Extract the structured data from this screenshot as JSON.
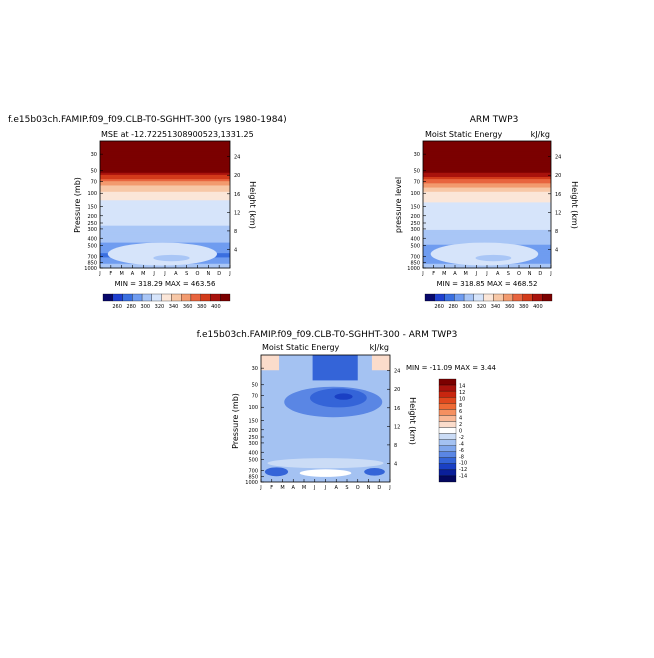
{
  "left_panel": {
    "title": "f.e15b03ch.FAMIP.f09_f09.CLB-T0-SGHHT-300 (yrs 1980-1984)",
    "subtitle": "MSE at -12.72251308900523,1331.25",
    "ylabel_left": "Pressure (mb)",
    "ylabel_right": "Height (km)",
    "minmax": "MIN = 318.29  MAX = 463.56",
    "colorbar_labels": [
      "260",
      "280",
      "300",
      "320",
      "340",
      "360",
      "380",
      "400"
    ]
  },
  "right_panel": {
    "title": "ARM TWP3",
    "subtitle_left": "Moist Static Energy",
    "subtitle_right": "kJ/kg",
    "ylabel_left": "pressure level",
    "ylabel_right": "Height (km)",
    "minmax": "MIN = 318.85  MAX = 468.52",
    "colorbar_labels": [
      "260",
      "280",
      "300",
      "320",
      "340",
      "360",
      "380",
      "400"
    ]
  },
  "bottom_panel": {
    "title": "f.e15b03ch.FAMIP.f09_f09.CLB-T0-SGHHT-300 - ARM TWP3",
    "subtitle_left": "Moist Static Energy",
    "subtitle_right": "kJ/kg",
    "ylabel_left": "Pressure (mb)",
    "ylabel_right": "Height (km)",
    "minmax": "MIN = -11.09  MAX =   3.44",
    "colorbar_labels": [
      "14",
      "12",
      "10",
      "8",
      "6",
      "4",
      "2",
      "0",
      "-2",
      "-4",
      "-6",
      "-8",
      "-10",
      "-12",
      "-14"
    ]
  },
  "axes": {
    "months": [
      "J",
      "F",
      "M",
      "A",
      "M",
      "J",
      "J",
      "A",
      "S",
      "O",
      "N",
      "D",
      "J"
    ],
    "pressure_ticks": [
      "30",
      "50",
      "70",
      "100",
      "150",
      "200",
      "250",
      "300",
      "400",
      "500",
      "700",
      "850",
      "1000"
    ],
    "height_ticks_top": [
      "4",
      "8",
      "12",
      "16",
      "20",
      "24"
    ],
    "height_ticks_bottom": [
      "4",
      "8",
      "12",
      "16",
      "20",
      "24"
    ]
  },
  "colors": {
    "mse_scale": [
      "#08086b",
      "#1e3fcf",
      "#3a6fe0",
      "#6f9cf0",
      "#a9c6f6",
      "#d6e4fa",
      "#fbe6d8",
      "#f7c7a6",
      "#f29a6e",
      "#e8643e",
      "#d23a1a",
      "#a8120c",
      "#7b0000"
    ],
    "diff_scale": [
      "#7b0000",
      "#a8120c",
      "#c8260f",
      "#e0481e",
      "#ee6a35",
      "#f59060",
      "#f9b896",
      "#fbdccb",
      "#ffffff",
      "#cbdcf6",
      "#a4c2f2",
      "#7fa6ec",
      "#5a86e4",
      "#3464d8",
      "#1a40c4",
      "#0a1f9a",
      "#04085f"
    ]
  },
  "chart_data": [
    {
      "type": "heatmap",
      "title": "f.e15b03ch.FAMIP.f09_f09.CLB-T0-SGHHT-300 (yrs 1980-1984)",
      "subtitle": "MSE at -12.72251308900523,1331.25",
      "x_label": "",
      "y_label": "Pressure (mb)",
      "y2_label": "Height (km)",
      "x_categories": [
        "J",
        "F",
        "M",
        "A",
        "M",
        "J",
        "J",
        "A",
        "S",
        "O",
        "N",
        "D",
        "J"
      ],
      "y_ticks": [
        "30",
        "50",
        "70",
        "100",
        "150",
        "200",
        "250",
        "300",
        "400",
        "500",
        "700",
        "850",
        "1000"
      ],
      "min": 318.29,
      "max": 463.56,
      "colorbar": [
        260,
        280,
        300,
        320,
        340,
        360,
        380,
        400
      ],
      "profile_by_level": [
        {
          "p": 30,
          "v": 460
        },
        {
          "p": 50,
          "v": 420
        },
        {
          "p": 70,
          "v": 385
        },
        {
          "p": 100,
          "v": 360
        },
        {
          "p": 150,
          "v": 350
        },
        {
          "p": 250,
          "v": 346
        },
        {
          "p": 400,
          "v": 340
        },
        {
          "p": 700,
          "v": 322
        },
        {
          "p": 1000,
          "v": 340
        }
      ]
    },
    {
      "type": "heatmap",
      "title": "ARM TWP3",
      "subtitle": "Moist Static Energy",
      "units": "kJ/kg",
      "y_label": "pressure level",
      "y2_label": "Height (km)",
      "x_categories": [
        "J",
        "F",
        "M",
        "A",
        "M",
        "J",
        "J",
        "A",
        "S",
        "O",
        "N",
        "D",
        "J"
      ],
      "y_ticks": [
        "30",
        "50",
        "70",
        "100",
        "150",
        "200",
        "250",
        "300",
        "400",
        "500",
        "700",
        "850",
        "1000"
      ],
      "min": 318.85,
      "max": 468.52,
      "colorbar": [
        260,
        280,
        300,
        320,
        340,
        360,
        380,
        400
      ],
      "profile_by_level": [
        {
          "p": 30,
          "v": 465
        },
        {
          "p": 50,
          "v": 425
        },
        {
          "p": 70,
          "v": 388
        },
        {
          "p": 100,
          "v": 362
        },
        {
          "p": 150,
          "v": 352
        },
        {
          "p": 250,
          "v": 348
        },
        {
          "p": 400,
          "v": 342
        },
        {
          "p": 700,
          "v": 325
        },
        {
          "p": 1000,
          "v": 342
        }
      ]
    },
    {
      "type": "heatmap",
      "title": "f.e15b03ch.FAMIP.f09_f09.CLB-T0-SGHHT-300 - ARM TWP3",
      "subtitle": "Moist Static Energy",
      "units": "kJ/kg",
      "y_label": "Pressure (mb)",
      "y2_label": "Height (km)",
      "x_categories": [
        "J",
        "F",
        "M",
        "A",
        "M",
        "J",
        "J",
        "A",
        "S",
        "O",
        "N",
        "D",
        "J"
      ],
      "y_ticks": [
        "30",
        "50",
        "70",
        "100",
        "150",
        "200",
        "250",
        "300",
        "400",
        "500",
        "700",
        "850",
        "1000"
      ],
      "min": -11.09,
      "max": 3.44,
      "colorbar": [
        14,
        12,
        10,
        8,
        6,
        4,
        2,
        0,
        -2,
        -4,
        -6,
        -8,
        -10,
        -12,
        -14
      ]
    }
  ]
}
